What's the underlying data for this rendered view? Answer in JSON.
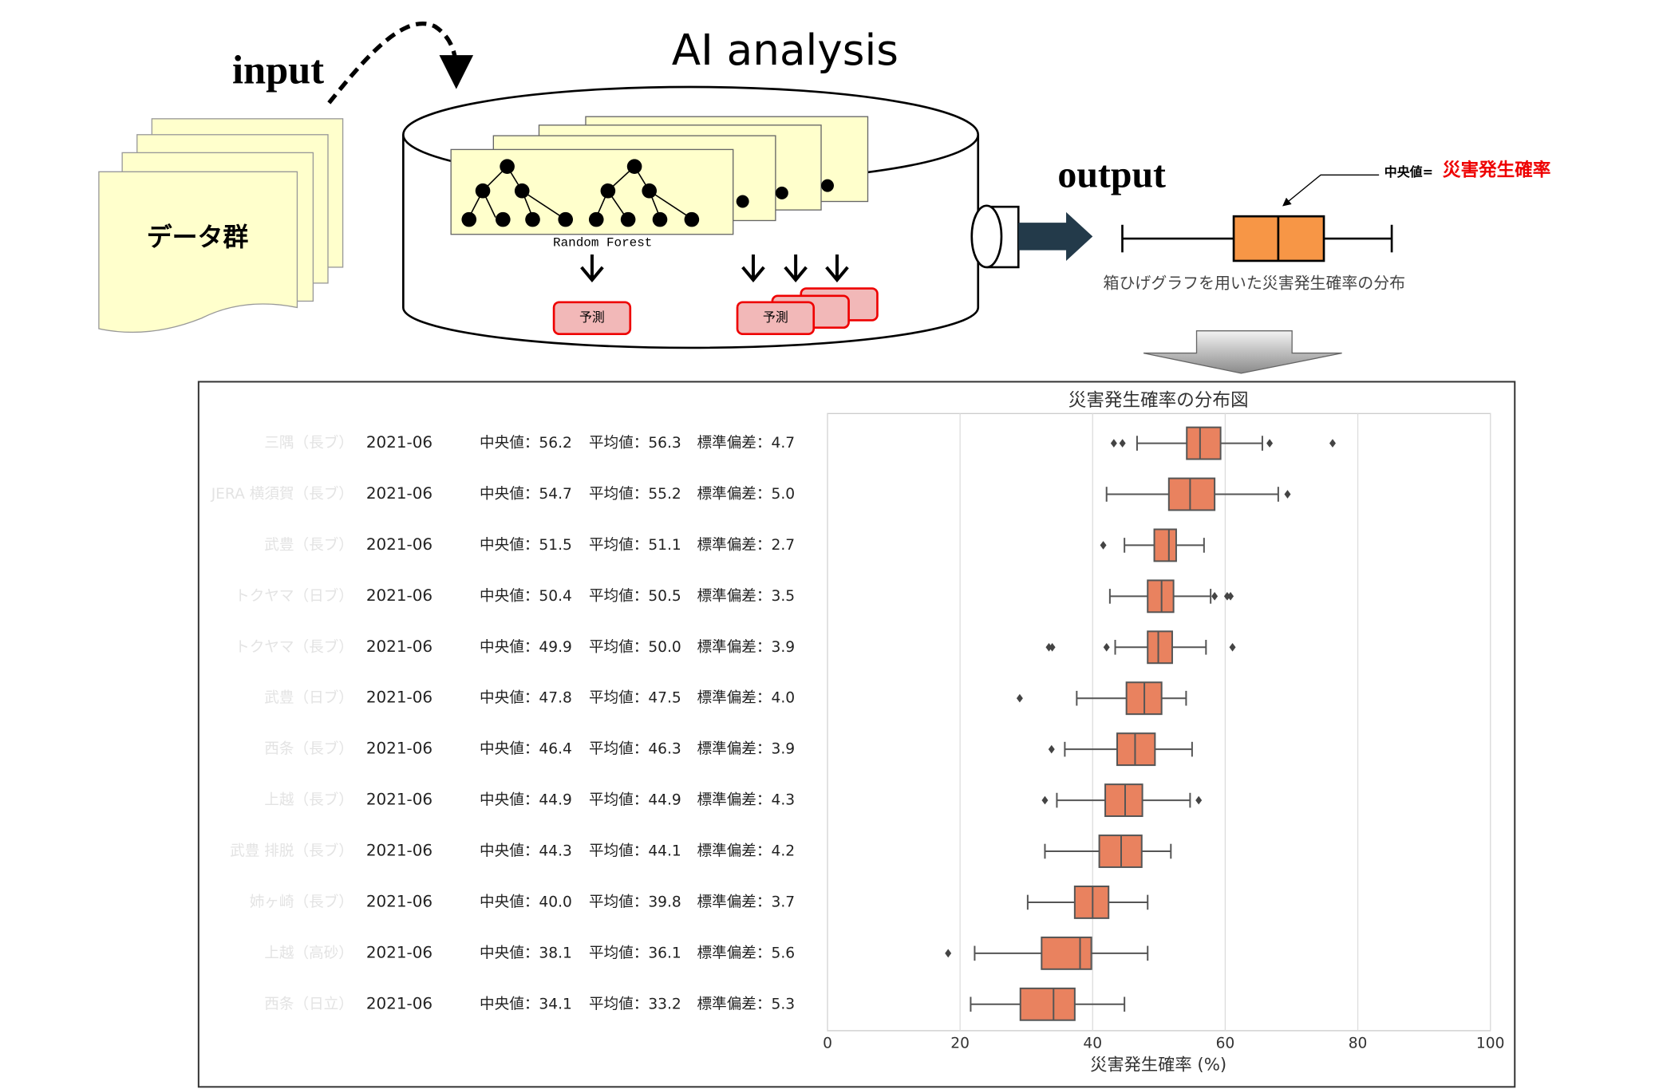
{
  "header": {
    "title": "AI analysis",
    "input": "input",
    "output": "output",
    "data_label": "データ群",
    "random_forest": "Random Forest",
    "predict": "予測"
  },
  "legend": {
    "median_prefix": "中央値=",
    "median_term": "災害発生確率",
    "caption": "箱ひげグラフを用いた災害発生確率の分布"
  },
  "stat_labels": [
    "中央値：",
    "平均値：",
    "標準偏差："
  ],
  "chart_data": {
    "type": "box",
    "title": "災害発生確率の分布図",
    "xlabel": "災害発生確率 (%)",
    "xlim": [
      0,
      100
    ],
    "xticks": [
      0,
      20,
      40,
      60,
      80,
      100
    ],
    "grid": true,
    "color": "#e9825f",
    "rows": [
      {
        "name": "三隅（長ブ）",
        "date": "2021-06",
        "median": "56.2",
        "mean": "56.3",
        "std": "4.7",
        "q1": 54.2,
        "q3": 59.3,
        "whisker_low": 46.7,
        "whisker_high": 65.6,
        "outliers": [
          43.2,
          44.5,
          66.7,
          76.2
        ]
      },
      {
        "name": "JERA 横須賀（長ブ）",
        "date": "2021-06",
        "median": "54.7",
        "mean": "55.2",
        "std": "5.0",
        "q1": 51.5,
        "q3": 58.4,
        "whisker_low": 42.1,
        "whisker_high": 68.0,
        "outliers": [
          69.4
        ]
      },
      {
        "name": "武豊（長ブ）",
        "date": "2021-06",
        "median": "51.5",
        "mean": "51.1",
        "std": "2.7",
        "q1": 49.3,
        "q3": 52.6,
        "whisker_low": 44.8,
        "whisker_high": 56.8,
        "outliers": [
          41.6
        ]
      },
      {
        "name": "トクヤマ（日ブ）",
        "date": "2021-06",
        "median": "50.4",
        "mean": "50.5",
        "std": "3.5",
        "q1": 48.3,
        "q3": 52.2,
        "whisker_low": 42.6,
        "whisker_high": 57.8,
        "outliers": [
          58.4,
          60.3,
          60.8
        ]
      },
      {
        "name": "トクヤマ（長ブ）",
        "date": "2021-06",
        "median": "49.9",
        "mean": "50.0",
        "std": "3.9",
        "q1": 48.3,
        "q3": 52.0,
        "whisker_low": 43.4,
        "whisker_high": 57.1,
        "outliers": [
          33.4,
          33.9,
          42.1,
          61.1
        ]
      },
      {
        "name": "武豊（日ブ）",
        "date": "2021-06",
        "median": "47.8",
        "mean": "47.5",
        "std": "4.0",
        "q1": 45.1,
        "q3": 50.4,
        "whisker_low": 37.6,
        "whisker_high": 54.1,
        "outliers": [
          29.0
        ]
      },
      {
        "name": "西条（長ブ）",
        "date": "2021-06",
        "median": "46.4",
        "mean": "46.3",
        "std": "3.9",
        "q1": 43.7,
        "q3": 49.4,
        "whisker_low": 35.8,
        "whisker_high": 55.0,
        "outliers": [
          33.8
        ]
      },
      {
        "name": "上越（長ブ）",
        "date": "2021-06",
        "median": "44.9",
        "mean": "44.9",
        "std": "4.3",
        "q1": 41.9,
        "q3": 47.5,
        "whisker_low": 34.6,
        "whisker_high": 54.7,
        "outliers": [
          32.8,
          56.0
        ]
      },
      {
        "name": "武豊 排脱（長ブ）",
        "date": "2021-06",
        "median": "44.3",
        "mean": "44.1",
        "std": "4.2",
        "q1": 41.0,
        "q3": 47.4,
        "whisker_low": 32.8,
        "whisker_high": 51.8,
        "outliers": []
      },
      {
        "name": "姉ヶ崎（長ブ）",
        "date": "2021-06",
        "median": "40.0",
        "mean": "39.8",
        "std": "3.7",
        "q1": 37.3,
        "q3": 42.4,
        "whisker_low": 30.2,
        "whisker_high": 48.3,
        "outliers": []
      },
      {
        "name": "上越（高砂）",
        "date": "2021-06",
        "median": "38.1",
        "mean": "36.1",
        "std": "5.6",
        "q1": 32.3,
        "q3": 39.8,
        "whisker_low": 22.2,
        "whisker_high": 48.3,
        "outliers": [
          18.2
        ]
      },
      {
        "name": "西条（日立）",
        "date": "2021-06",
        "median": "34.1",
        "mean": "33.2",
        "std": "5.3",
        "q1": 29.1,
        "q3": 37.3,
        "whisker_low": 21.6,
        "whisker_high": 44.8,
        "outliers": []
      }
    ]
  }
}
